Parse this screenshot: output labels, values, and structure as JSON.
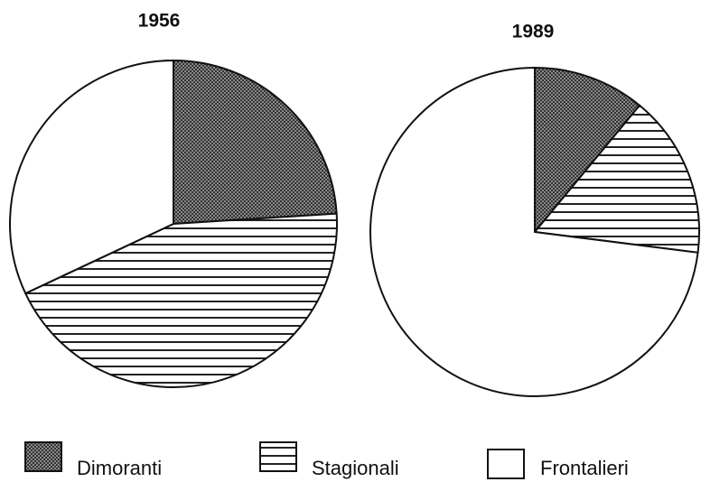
{
  "chart_data": [
    {
      "type": "pie",
      "title": "1956",
      "categories": [
        "Dimoranti",
        "Stagionali",
        "Frontalieri"
      ],
      "values": [
        24,
        44,
        32
      ]
    },
    {
      "type": "pie",
      "title": "1989",
      "categories": [
        "Dimoranti",
        "Stagionali",
        "Frontalieri"
      ],
      "values": [
        11,
        16,
        73
      ]
    }
  ]
}
